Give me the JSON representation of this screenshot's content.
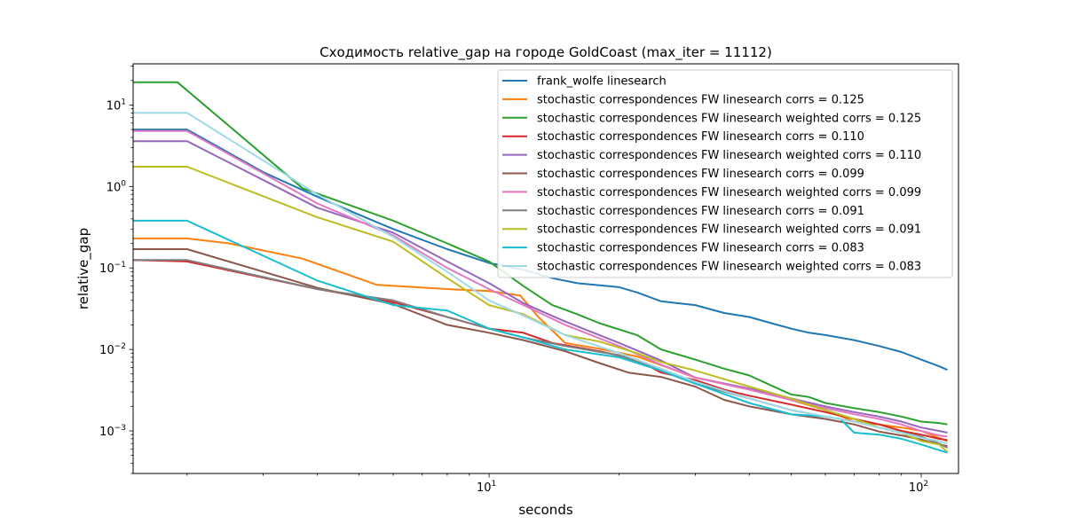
{
  "chart_data": {
    "type": "line",
    "title": "Сходимость relative_gap на городе GoldCoast  (max_iter = 11112)",
    "xlabel": "seconds",
    "ylabel": "relative_gap",
    "xscale": "log",
    "yscale": "log",
    "xlim": [
      1.5,
      122
    ],
    "ylim": [
      0.0003,
      32
    ],
    "x_major_ticks": [
      {
        "value": 10,
        "label": "10",
        "exp": "1"
      },
      {
        "value": 100,
        "label": "10",
        "exp": "2"
      }
    ],
    "y_major_ticks": [
      {
        "value": 0.001,
        "label": "10",
        "exp": "−3"
      },
      {
        "value": 0.01,
        "label": "10",
        "exp": "−2"
      },
      {
        "value": 0.1,
        "label": "10",
        "exp": "−1"
      },
      {
        "value": 1,
        "label": "10",
        "exp": "0"
      },
      {
        "value": 10,
        "label": "10",
        "exp": "1"
      }
    ],
    "legend_position": "top-right",
    "grid": false,
    "series": [
      {
        "name": "frank_wolfe linesearch",
        "color": "#1f77b4",
        "x": [
          1.5,
          2,
          3,
          4,
          5,
          6,
          8,
          10,
          12,
          14,
          16,
          20,
          22,
          25,
          30,
          35,
          40,
          45,
          50,
          55,
          60,
          70,
          80,
          90,
          100,
          110,
          115
        ],
        "y": [
          5.0,
          5.0,
          1.5,
          0.75,
          0.45,
          0.3,
          0.17,
          0.115,
          0.095,
          0.075,
          0.065,
          0.058,
          0.05,
          0.039,
          0.035,
          0.028,
          0.025,
          0.021,
          0.018,
          0.016,
          0.015,
          0.013,
          0.011,
          0.0093,
          0.0075,
          0.0062,
          0.0056
        ]
      },
      {
        "name": "stochastic correspondences FW linesearch corrs = 0.125",
        "color": "#ff7f0e",
        "x": [
          1.5,
          2,
          2.5,
          3.7,
          5.5,
          8,
          10,
          11.8,
          13,
          15,
          18,
          22,
          30,
          40,
          50,
          60,
          70,
          80,
          90,
          100,
          110,
          115
        ],
        "y": [
          0.23,
          0.23,
          0.2,
          0.13,
          0.062,
          0.055,
          0.052,
          0.046,
          0.025,
          0.012,
          0.0102,
          0.0082,
          0.0045,
          0.0033,
          0.0024,
          0.0018,
          0.0013,
          0.0012,
          0.0011,
          0.001,
          0.00082,
          0.00075
        ]
      },
      {
        "name": "stochastic correspondences FW linesearch weighted corrs = 0.125",
        "color": "#2ca02c",
        "x": [
          1.5,
          1.9,
          3.7,
          6,
          8,
          10,
          12,
          14,
          16,
          18,
          22,
          25,
          30,
          35,
          40,
          45,
          50,
          55,
          60,
          70,
          80,
          90,
          100,
          110,
          115
        ],
        "y": [
          19.0,
          19.0,
          0.95,
          0.38,
          0.2,
          0.12,
          0.06,
          0.035,
          0.027,
          0.021,
          0.015,
          0.01,
          0.0075,
          0.0058,
          0.0048,
          0.0036,
          0.0028,
          0.0026,
          0.0022,
          0.0019,
          0.0017,
          0.0015,
          0.0013,
          0.00125,
          0.0012
        ]
      },
      {
        "name": "stochastic correspondences FW linesearch corrs = 0.110",
        "color": "#d62728",
        "x": [
          1.5,
          2,
          4,
          6,
          10,
          12,
          14,
          18,
          22,
          25,
          30,
          35,
          40,
          50,
          60,
          70,
          80,
          90,
          100,
          110,
          115
        ],
        "y": [
          0.125,
          0.12,
          0.055,
          0.038,
          0.018,
          0.016,
          0.012,
          0.0095,
          0.0075,
          0.0052,
          0.0042,
          0.0032,
          0.0027,
          0.0021,
          0.0017,
          0.0014,
          0.0012,
          0.001,
          0.0009,
          0.0008,
          0.00077
        ]
      },
      {
        "name": "stochastic correspondences FW linesearch weighted corrs = 0.110",
        "color": "#9467bd",
        "x": [
          1.5,
          2,
          4,
          6,
          8,
          10,
          12,
          15,
          20,
          25,
          30,
          40,
          50,
          60,
          70,
          80,
          90,
          100,
          110,
          115
        ],
        "y": [
          3.6,
          3.6,
          0.55,
          0.27,
          0.12,
          0.065,
          0.037,
          0.022,
          0.012,
          0.0073,
          0.0045,
          0.0033,
          0.0025,
          0.002,
          0.0017,
          0.0015,
          0.0013,
          0.0011,
          0.001,
          0.00095
        ]
      },
      {
        "name": "stochastic correspondences FW linesearch corrs = 0.099",
        "color": "#8c564b",
        "x": [
          1.5,
          2,
          4,
          6,
          8,
          10,
          12,
          15,
          18,
          21,
          25,
          30,
          35,
          40,
          50,
          60,
          70,
          80,
          90,
          100,
          110,
          115
        ],
        "y": [
          0.17,
          0.17,
          0.057,
          0.036,
          0.02,
          0.016,
          0.013,
          0.0095,
          0.0068,
          0.0052,
          0.0046,
          0.0035,
          0.0024,
          0.002,
          0.0016,
          0.0014,
          0.0012,
          0.00098,
          0.00088,
          0.00078,
          0.00068,
          0.00065
        ]
      },
      {
        "name": "stochastic correspondences FW linesearch weighted corrs = 0.099",
        "color": "#e377c2",
        "x": [
          1.5,
          2,
          4,
          6,
          8,
          10,
          12,
          15,
          20,
          25,
          30,
          40,
          50,
          60,
          70,
          80,
          90,
          100,
          110,
          115
        ],
        "y": [
          4.8,
          4.8,
          0.62,
          0.25,
          0.1,
          0.055,
          0.035,
          0.02,
          0.011,
          0.0065,
          0.0045,
          0.0032,
          0.0024,
          0.0019,
          0.0016,
          0.0014,
          0.0012,
          0.001,
          0.00088,
          0.00085
        ]
      },
      {
        "name": "stochastic correspondences FW linesearch corrs = 0.091",
        "color": "#7f7f7f",
        "x": [
          1.5,
          2,
          4,
          6,
          8,
          10,
          12,
          15,
          20,
          25,
          30,
          40,
          50,
          60,
          70,
          80,
          90,
          100,
          110,
          115
        ],
        "y": [
          0.125,
          0.125,
          0.055,
          0.04,
          0.025,
          0.018,
          0.014,
          0.011,
          0.0085,
          0.0055,
          0.0038,
          0.0025,
          0.0018,
          0.0015,
          0.0013,
          0.0011,
          0.00095,
          0.00085,
          0.0007,
          0.00062
        ]
      },
      {
        "name": "stochastic correspondences FW linesearch weighted corrs = 0.091",
        "color": "#bcbd22",
        "x": [
          1.5,
          2,
          4,
          6,
          8,
          10,
          12,
          15,
          18,
          22,
          25,
          30,
          40,
          50,
          60,
          70,
          80,
          90,
          100,
          110,
          115
        ],
        "y": [
          1.75,
          1.75,
          0.42,
          0.21,
          0.075,
          0.035,
          0.027,
          0.015,
          0.0125,
          0.009,
          0.007,
          0.0055,
          0.0035,
          0.0025,
          0.0018,
          0.0014,
          0.0011,
          0.00095,
          0.00075,
          0.00068,
          0.00055
        ]
      },
      {
        "name": "stochastic correspondences FW linesearch corrs = 0.083",
        "color": "#17becf",
        "x": [
          1.5,
          2,
          4,
          6,
          8,
          10,
          12,
          15,
          20,
          25,
          30,
          40,
          50,
          60,
          65,
          70,
          80,
          90,
          100,
          110,
          115
        ],
        "y": [
          0.38,
          0.38,
          0.07,
          0.035,
          0.03,
          0.018,
          0.014,
          0.01,
          0.008,
          0.0055,
          0.0038,
          0.0022,
          0.0016,
          0.0015,
          0.0014,
          0.00095,
          0.0009,
          0.0008,
          0.00068,
          0.00058,
          0.00054
        ]
      },
      {
        "name": "stochastic correspondences FW linesearch weighted corrs = 0.083",
        "color": "#9edae5",
        "x": [
          1.5,
          2,
          4,
          6,
          8,
          10,
          12,
          15,
          20,
          25,
          30,
          40,
          50,
          60,
          70,
          80,
          90,
          100,
          110,
          115
        ],
        "y": [
          8.0,
          8.0,
          0.8,
          0.24,
          0.09,
          0.04,
          0.026,
          0.015,
          0.009,
          0.0058,
          0.004,
          0.0025,
          0.0018,
          0.0015,
          0.0013,
          0.0011,
          0.00095,
          0.00082,
          0.00075,
          0.0007
        ]
      }
    ]
  }
}
